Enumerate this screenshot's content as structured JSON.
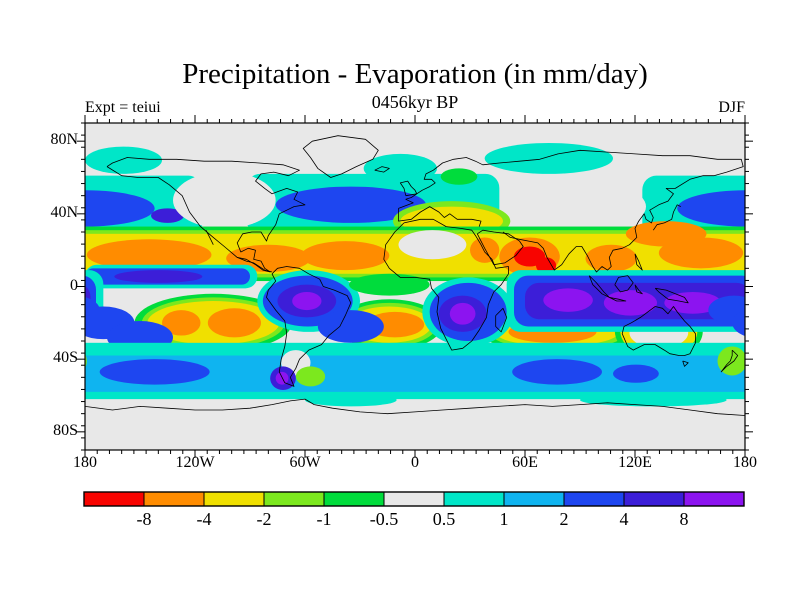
{
  "header": {
    "title": "Precipitation - Evaporation (in mm/day)",
    "subtitle": "0456kyr BP",
    "experiment": "Expt = teiui",
    "season": "DJF"
  },
  "axes": {
    "x_ticks": [
      {
        "label": "180",
        "lon": -180
      },
      {
        "label": "120W",
        "lon": -120
      },
      {
        "label": "60W",
        "lon": -60
      },
      {
        "label": "0",
        "lon": 0
      },
      {
        "label": "60E",
        "lon": 60
      },
      {
        "label": "120E",
        "lon": 120
      },
      {
        "label": "180",
        "lon": 180
      }
    ],
    "y_ticks": [
      {
        "label": "80N",
        "lat": 80
      },
      {
        "label": "40N",
        "lat": 40
      },
      {
        "label": "0",
        "lat": 0
      },
      {
        "label": "40S",
        "lat": -40
      },
      {
        "label": "80S",
        "lat": -80
      }
    ]
  },
  "colorbar": {
    "boundary_labels": [
      "-8",
      "-4",
      "-2",
      "-1",
      "-0.5",
      "0.5",
      "1",
      "2",
      "4",
      "8"
    ]
  },
  "chart_data": {
    "type": "heatmap",
    "subtype": "filled-contour world map (lat-lon, cylindrical equidistant)",
    "title": "Precipitation - Evaporation (in mm/day)",
    "units": "mm/day",
    "time_label": "0456kyr BP",
    "experiment": "teiui",
    "season": "DJF",
    "x_range_deg": [
      -180,
      180
    ],
    "y_range_deg": [
      -90,
      90
    ],
    "contour_levels": [
      -8,
      -4,
      -2,
      -1,
      -0.5,
      0.5,
      1,
      2,
      4,
      8
    ],
    "palette": [
      {
        "color": "#f80400",
        "range": "< -8"
      },
      {
        "color": "#ff8c00",
        "range": "-8 to -4"
      },
      {
        "color": "#f0e000",
        "range": "-4 to -2"
      },
      {
        "color": "#7ce81e",
        "range": "-2 to -1"
      },
      {
        "color": "#00dc3c",
        "range": "-1 to -0.5"
      },
      {
        "color": "#e8e8e8",
        "range": "-0.5 to 0.5"
      },
      {
        "color": "#00e6c8",
        "range": "0.5 to 1"
      },
      {
        "color": "#0fb4f0",
        "range": "1 to 2"
      },
      {
        "color": "#1e46f0",
        "range": "2 to 4"
      },
      {
        "color": "#3c1ed8",
        "range": "4 to 8"
      },
      {
        "color": "#8c14f0",
        "range": "> 8"
      }
    ],
    "regions": [
      {
        "name": "bering-arctic-positive",
        "shape": "ellipse",
        "lon": [
          -180,
          -138
        ],
        "lat": [
          77,
          62
        ],
        "level": 6
      },
      {
        "name": "siberia-arctic-positive",
        "shape": "ellipse",
        "lon": [
          38,
          108
        ],
        "lat": [
          79,
          62
        ],
        "level": 6
      },
      {
        "name": "norwegian-sea-positive",
        "shape": "ellipse",
        "lon": [
          -28,
          12
        ],
        "lat": [
          73,
          57
        ],
        "level": 6
      },
      {
        "name": "north-pacific-band",
        "shape": "rect",
        "lon": [
          124,
          244
        ],
        "lat": [
          61,
          27
        ],
        "level": 6
      },
      {
        "name": "north-atlantic-europe-band",
        "shape": "rect",
        "lon": [
          -92,
          46
        ],
        "lat": [
          62,
          29
        ],
        "level": 6
      },
      {
        "name": "north-pacific-storm-track",
        "shape": "ellipse",
        "lon": [
          143,
          218
        ],
        "lat": [
          53,
          33
        ],
        "level": 8
      },
      {
        "name": "gulf-of-alaska-max",
        "shape": "ellipse",
        "lon": [
          -144,
          -126
        ],
        "lat": [
          43,
          35
        ],
        "level": 9
      },
      {
        "name": "north-atlantic-storm-track",
        "shape": "ellipse",
        "lon": [
          -76,
          6
        ],
        "lat": [
          55,
          35
        ],
        "level": 8
      },
      {
        "name": "north-america-interior-neutral",
        "shape": "ellipse",
        "lon": [
          -132,
          -76
        ],
        "lat": [
          63,
          32
        ],
        "level": 5
      },
      {
        "name": "central-asia-neutral",
        "shape": "ellipse",
        "lon": [
          50,
          126
        ],
        "lat": [
          59,
          29
        ],
        "level": 5
      },
      {
        "name": "scandinavia-weak-negative",
        "shape": "ellipse",
        "lon": [
          14,
          34
        ],
        "lat": [
          65,
          56
        ],
        "level": 4
      },
      {
        "name": "mediterranean-rim",
        "shape": "ellipse",
        "lon": [
          -12,
          52
        ],
        "lat": [
          47,
          25
        ],
        "level": 3
      },
      {
        "name": "mediterranean-dry-band",
        "shape": "ellipse",
        "lon": [
          -8,
          48
        ],
        "lat": [
          44,
          28
        ],
        "level": 2
      },
      {
        "name": "nh-subtropics-rim-outer",
        "shape": "band",
        "lon": [
          -180,
          180
        ],
        "lat": [
          33,
          3
        ],
        "level": 4
      },
      {
        "name": "nh-subtropics-rim-inner",
        "shape": "band",
        "lon": [
          -180,
          180
        ],
        "lat": [
          31,
          5
        ],
        "level": 3
      },
      {
        "name": "nh-subtropics-dry-band",
        "shape": "band",
        "lon": [
          -180,
          180
        ],
        "lat": [
          29,
          7
        ],
        "level": 2
      },
      {
        "name": "sahara-neutral",
        "shape": "ellipse",
        "lon": [
          -9,
          28
        ],
        "lat": [
          31,
          15
        ],
        "level": 5
      },
      {
        "name": "west-pacific-dry-core",
        "shape": "ellipse",
        "lon": [
          133,
          179
        ],
        "lat": [
          27,
          10
        ],
        "level": 1
      },
      {
        "name": "east-pacific-dry-core",
        "shape": "ellipse",
        "lon": [
          -179,
          -111
        ],
        "lat": [
          26,
          9
        ],
        "level": 1
      },
      {
        "name": "caribbean-dry-core",
        "shape": "ellipse",
        "lon": [
          -103,
          -57
        ],
        "lat": [
          23,
          8
        ],
        "level": 1
      },
      {
        "name": "atlantic-dry-core",
        "shape": "ellipse",
        "lon": [
          -62,
          -14
        ],
        "lat": [
          25,
          9
        ],
        "level": 1
      },
      {
        "name": "red-sea-dry-core",
        "shape": "ellipse",
        "lon": [
          30,
          46
        ],
        "lat": [
          27,
          13
        ],
        "level": 1
      },
      {
        "name": "arabian-sea-dry-core",
        "shape": "ellipse",
        "lon": [
          46,
          79
        ],
        "lat": [
          27,
          6
        ],
        "level": 1
      },
      {
        "name": "arabian-sea-extreme-dry",
        "shape": "ellipse",
        "lon": [
          54,
          71
        ],
        "lat": [
          22,
          11
        ],
        "level": 0
      },
      {
        "name": "west-india-extreme-dry",
        "shape": "ellipse",
        "lon": [
          66,
          77
        ],
        "lat": [
          16,
          7
        ],
        "level": 0
      },
      {
        "name": "kuroshio-dry-core",
        "shape": "ellipse",
        "lon": [
          115,
          159
        ],
        "lat": [
          36,
          22
        ],
        "level": 1
      },
      {
        "name": "indochina-dry-core",
        "shape": "ellipse",
        "lon": [
          93,
          121
        ],
        "lat": [
          23,
          8
        ],
        "level": 1
      },
      {
        "name": "se-pacific-rim-outer",
        "shape": "ellipse",
        "lon": [
          -153,
          -67
        ],
        "lat": [
          -4,
          -36
        ],
        "level": 4
      },
      {
        "name": "se-pacific-rim-inner",
        "shape": "ellipse",
        "lon": [
          -149,
          -71
        ],
        "lat": [
          -6,
          -34
        ],
        "level": 3
      },
      {
        "name": "se-pacific-dry-band",
        "shape": "ellipse",
        "lon": [
          -146,
          -74
        ],
        "lat": [
          -8,
          -32
        ],
        "level": 2
      },
      {
        "name": "se-pacific-dry-core-west",
        "shape": "ellipse",
        "lon": [
          -138,
          -117
        ],
        "lat": [
          -13,
          -27
        ],
        "level": 1
      },
      {
        "name": "se-pacific-dry-core-east",
        "shape": "ellipse",
        "lon": [
          -113,
          -84
        ],
        "lat": [
          -12,
          -28
        ],
        "level": 1
      },
      {
        "name": "s-atlantic-rim-outer",
        "shape": "ellipse",
        "lon": [
          -43,
          15
        ],
        "lat": [
          -7,
          -35
        ],
        "level": 4
      },
      {
        "name": "s-atlantic-rim-inner",
        "shape": "ellipse",
        "lon": [
          -40,
          12
        ],
        "lat": [
          -9,
          -33
        ],
        "level": 3
      },
      {
        "name": "s-atlantic-dry-band",
        "shape": "ellipse",
        "lon": [
          -37,
          9
        ],
        "lat": [
          -11,
          -31
        ],
        "level": 2
      },
      {
        "name": "s-atlantic-dry-core",
        "shape": "ellipse",
        "lon": [
          -27,
          5
        ],
        "lat": [
          -14,
          -28
        ],
        "level": 1
      },
      {
        "name": "s-indian-rim-outer",
        "shape": "ellipse",
        "lon": [
          36,
          120
        ],
        "lat": [
          -12,
          -37
        ],
        "level": 4
      },
      {
        "name": "s-indian-rim-inner",
        "shape": "ellipse",
        "lon": [
          40,
          116
        ],
        "lat": [
          -14,
          -35
        ],
        "level": 3
      },
      {
        "name": "s-indian-dry-band",
        "shape": "ellipse",
        "lon": [
          43,
          112
        ],
        "lat": [
          -16,
          -33
        ],
        "level": 2
      },
      {
        "name": "s-indian-dry-core",
        "shape": "ellipse",
        "lon": [
          51,
          99
        ],
        "lat": [
          -19,
          -31
        ],
        "level": 1
      },
      {
        "name": "australia-rim",
        "shape": "ellipse",
        "lon": [
          109,
          157
        ],
        "lat": [
          -8,
          -41
        ],
        "level": 4
      },
      {
        "name": "australia-dry-ring",
        "shape": "ellipse",
        "lon": [
          112,
          154
        ],
        "lat": [
          -10,
          -39
        ],
        "level": 2
      },
      {
        "name": "australia-interior-neutral",
        "shape": "ellipse",
        "lon": [
          117,
          149
        ],
        "lat": [
          -17,
          -34
        ],
        "level": 5
      },
      {
        "name": "nw-australia-dry-core",
        "shape": "ellipse",
        "lon": [
          111,
          137
        ],
        "lat": [
          -11,
          -21
        ],
        "level": 1
      },
      {
        "name": "pacific-itcz-rim",
        "shape": "rect",
        "lon": [
          -180,
          -86
        ],
        "lat": [
          12,
          -1
        ],
        "level": 6
      },
      {
        "name": "pacific-itcz",
        "shape": "rect",
        "lon": [
          -180,
          -90
        ],
        "lat": [
          10,
          1
        ],
        "level": 8
      },
      {
        "name": "pacific-itcz-core",
        "shape": "ellipse",
        "lon": [
          -164,
          -116
        ],
        "lat": [
          9,
          2
        ],
        "level": 9
      },
      {
        "name": "indo-wpac-wet-rim",
        "shape": "rect",
        "lon": [
          50,
          190
        ],
        "lat": [
          9,
          -25
        ],
        "level": 6
      },
      {
        "name": "indo-wpac-wet-band",
        "shape": "rect",
        "lon": [
          54,
          186
        ],
        "lat": [
          6,
          -22
        ],
        "level": 8
      },
      {
        "name": "indo-wpac-wet-core",
        "shape": "rect",
        "lon": [
          60,
          183
        ],
        "lat": [
          2,
          -18
        ],
        "level": 9
      },
      {
        "name": "indian-ocean-wet-max",
        "shape": "ellipse",
        "lon": [
          70,
          97
        ],
        "lat": [
          -1,
          -14
        ],
        "level": 10
      },
      {
        "name": "maritime-continent-wet-max",
        "shape": "ellipse",
        "lon": [
          103,
          132
        ],
        "lat": [
          -2,
          -16
        ],
        "level": 10
      },
      {
        "name": "new-guinea-wet-max",
        "shape": "ellipse",
        "lon": [
          136,
          167
        ],
        "lat": [
          -3,
          -15
        ],
        "level": 10
      },
      {
        "name": "spcz-segment-1",
        "shape": "ellipse",
        "lon": [
          160,
          188
        ],
        "lat": [
          -5,
          -21
        ],
        "level": 8
      },
      {
        "name": "spcz-segment-2",
        "shape": "ellipse",
        "lon": [
          173,
          207
        ],
        "lat": [
          -11,
          -29
        ],
        "level": 8
      },
      {
        "name": "spcz-segment-3",
        "shape": "ellipse",
        "lon": [
          192,
          228
        ],
        "lat": [
          -19,
          -37
        ],
        "level": 8
      },
      {
        "name": "amazon-wet-rim",
        "shape": "ellipse",
        "lon": [
          -86,
          -30
        ],
        "lat": [
          9,
          -25
        ],
        "level": 6
      },
      {
        "name": "amazon-wet",
        "shape": "ellipse",
        "lon": [
          -83,
          -34
        ],
        "lat": [
          6,
          -22
        ],
        "level": 8
      },
      {
        "name": "amazon-wet-core",
        "shape": "ellipse",
        "lon": [
          -75,
          -43
        ],
        "lat": [
          1,
          -17
        ],
        "level": 9
      },
      {
        "name": "amazon-wet-max",
        "shape": "ellipse",
        "lon": [
          -67,
          -51
        ],
        "lat": [
          -3,
          -13
        ],
        "level": 10
      },
      {
        "name": "sacz-wet",
        "shape": "ellipse",
        "lon": [
          -53,
          -17
        ],
        "lat": [
          -13,
          -31
        ],
        "level": 8
      },
      {
        "name": "gulf-of-guinea-weak",
        "shape": "ellipse",
        "lon": [
          -36,
          8
        ],
        "lat": [
          7,
          -5
        ],
        "level": 4
      },
      {
        "name": "southern-africa-wet-rim",
        "shape": "ellipse",
        "lon": [
          4,
          54
        ],
        "lat": [
          5,
          -33
        ],
        "level": 6
      },
      {
        "name": "southern-africa-wet",
        "shape": "ellipse",
        "lon": [
          8,
          50
        ],
        "lat": [
          2,
          -30
        ],
        "level": 8
      },
      {
        "name": "southern-africa-wet-core",
        "shape": "ellipse",
        "lon": [
          13,
          39
        ],
        "lat": [
          -5,
          -25
        ],
        "level": 9
      },
      {
        "name": "southern-africa-wet-max",
        "shape": "ellipse",
        "lon": [
          19,
          33
        ],
        "lat": [
          -9,
          -21
        ],
        "level": 10
      },
      {
        "name": "southern-ocean-rim",
        "shape": "band",
        "lon": [
          -180,
          180
        ],
        "lat": [
          -31,
          -63
        ],
        "level": 6
      },
      {
        "name": "southern-ocean-wet-band",
        "shape": "band",
        "lon": [
          -180,
          180
        ],
        "lat": [
          -38,
          -58
        ],
        "level": 7
      },
      {
        "name": "s-indian-ocean-wet-core",
        "shape": "ellipse",
        "lon": [
          53,
          102
        ],
        "lat": [
          -40,
          -54
        ],
        "level": 8
      },
      {
        "name": "s-pacific-wet-core",
        "shape": "ellipse",
        "lon": [
          -172,
          -112
        ],
        "lat": [
          -40,
          -54
        ],
        "level": 8
      },
      {
        "name": "s-australia-wet-core",
        "shape": "ellipse",
        "lon": [
          108,
          133
        ],
        "lat": [
          -43,
          -53
        ],
        "level": 8
      },
      {
        "name": "patagonia-neutral",
        "shape": "ellipse",
        "lon": [
          -73,
          -57
        ],
        "lat": [
          -35,
          -49
        ],
        "level": 5
      },
      {
        "name": "patagonia-wet-spot",
        "shape": "ellipse",
        "lon": [
          -79,
          -65
        ],
        "lat": [
          -44,
          -57
        ],
        "level": 9
      },
      {
        "name": "patagonia-wet-max",
        "shape": "ellipse",
        "lon": [
          -76,
          -69
        ],
        "lat": [
          -47,
          -54
        ],
        "level": 10
      },
      {
        "name": "falklands-weak-negative",
        "shape": "ellipse",
        "lon": [
          -65,
          -49
        ],
        "lat": [
          -44,
          -55
        ],
        "level": 3
      },
      {
        "name": "new-zealand-weak-negative",
        "shape": "ellipse",
        "lon": [
          165,
          181
        ],
        "lat": [
          -33,
          -49
        ],
        "level": 3
      },
      {
        "name": "antarctica-neutral",
        "shape": "band",
        "lon": [
          -180,
          180
        ],
        "lat": [
          -62,
          -90
        ],
        "level": 5
      },
      {
        "name": "east-antarctic-coast-positive",
        "shape": "ellipse",
        "lon": [
          90,
          170
        ],
        "lat": [
          -59,
          -66
        ],
        "level": 6
      },
      {
        "name": "weddell-coast-positive",
        "shape": "ellipse",
        "lon": [
          -60,
          -10
        ],
        "lat": [
          -59,
          -66
        ],
        "level": 6
      }
    ]
  }
}
